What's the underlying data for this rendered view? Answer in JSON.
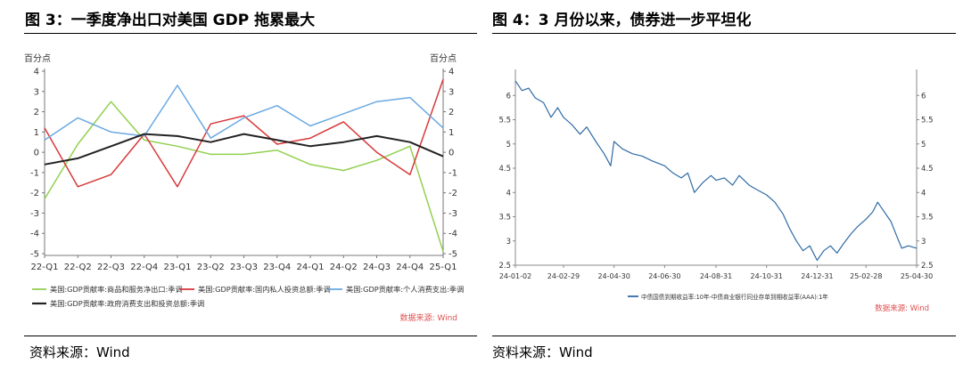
{
  "left": {
    "figure_title": "图 3：一季度净出口对美国 GDP 拖累最大",
    "source": "资料来源：Wind",
    "watermark": "数据来源: Wind",
    "unit_left": "百分点",
    "unit_right": "百分点"
  },
  "right": {
    "figure_title": "图 4：3 月份以来，债券进一步平坦化",
    "source": "资料来源：Wind",
    "watermark": "数据来源: Wind"
  },
  "colors": {
    "green": "#92d050",
    "red": "#d9393a",
    "blue": "#6aa9e3",
    "black": "#222222",
    "line_blue": "#2f6ba5",
    "watermark": "#e05050"
  },
  "chart_data": [
    {
      "type": "line",
      "categories": [
        "22-Q1",
        "22-Q2",
        "22-Q3",
        "22-Q4",
        "23-Q1",
        "23-Q2",
        "23-Q3",
        "23-Q4",
        "24-Q1",
        "24-Q2",
        "24-Q3",
        "24-Q4",
        "25-Q1"
      ],
      "ylim": [
        -5,
        4
      ],
      "yticks": [
        -5,
        -4,
        -3,
        -2,
        -1,
        0,
        1,
        2,
        3,
        4
      ],
      "grid": false,
      "legend_position": "bottom",
      "series": [
        {
          "name": "美国:GDP贡献率:商品和服务净出口:季调",
          "color": "green",
          "values": [
            -2.3,
            0.4,
            2.5,
            0.6,
            0.3,
            -0.1,
            -0.1,
            0.1,
            -0.6,
            -0.9,
            -0.4,
            0.3,
            -4.9
          ]
        },
        {
          "name": "美国:GDP贡献率:国内私人投资总额:季调",
          "color": "red",
          "values": [
            1.2,
            -1.7,
            -1.1,
            0.9,
            -1.7,
            1.4,
            1.8,
            0.4,
            0.7,
            1.5,
            0.0,
            -1.1,
            3.6
          ]
        },
        {
          "name": "美国:GDP贡献率:个人消费支出:季调",
          "color": "blue",
          "values": [
            0.6,
            1.7,
            1.0,
            0.8,
            3.3,
            0.7,
            1.7,
            2.3,
            1.3,
            1.9,
            2.5,
            2.7,
            1.2
          ]
        },
        {
          "name": "美国:GDP贡献率:政府消费支出和投资总额:季调",
          "color": "black",
          "values": [
            -0.6,
            -0.3,
            0.3,
            0.9,
            0.8,
            0.5,
            0.9,
            0.6,
            0.3,
            0.5,
            0.8,
            0.5,
            -0.2
          ]
        }
      ]
    },
    {
      "type": "line",
      "xlim": [
        "24-01-02",
        "25-04-30"
      ],
      "xticks": [
        "24-01-02",
        "24-02-29",
        "24-04-30",
        "24-06-30",
        "24-08-31",
        "24-10-31",
        "24-12-31",
        "25-02-28",
        "25-04-30"
      ],
      "ylim": [
        2.5,
        6.5
      ],
      "yticks": [
        2.5,
        3,
        3.5,
        4,
        4.5,
        5,
        5.5,
        6
      ],
      "grid": false,
      "legend_position": "bottom",
      "series": [
        {
          "name": "中债国债到期收益率:10年-中债商业银行同业存单到期收益率(AAA):1年",
          "color": "line_blue",
          "points": [
            [
              "24-01-02",
              6.3
            ],
            [
              "24-01-10",
              6.1
            ],
            [
              "24-01-18",
              6.15
            ],
            [
              "24-01-26",
              5.95
            ],
            [
              "24-02-05",
              5.85
            ],
            [
              "24-02-14",
              5.55
            ],
            [
              "24-02-22",
              5.75
            ],
            [
              "24-02-29",
              5.55
            ],
            [
              "24-03-10",
              5.4
            ],
            [
              "24-03-20",
              5.2
            ],
            [
              "24-03-28",
              5.35
            ],
            [
              "24-04-08",
              5.05
            ],
            [
              "24-04-18",
              4.8
            ],
            [
              "24-04-26",
              4.55
            ],
            [
              "24-04-30",
              5.05
            ],
            [
              "24-05-10",
              4.9
            ],
            [
              "24-05-22",
              4.8
            ],
            [
              "24-06-03",
              4.75
            ],
            [
              "24-06-15",
              4.65
            ],
            [
              "24-06-30",
              4.55
            ],
            [
              "24-07-10",
              4.4
            ],
            [
              "24-07-20",
              4.3
            ],
            [
              "24-07-28",
              4.4
            ],
            [
              "24-08-05",
              4.0
            ],
            [
              "24-08-15",
              4.2
            ],
            [
              "24-08-25",
              4.35
            ],
            [
              "24-08-31",
              4.25
            ],
            [
              "24-09-10",
              4.3
            ],
            [
              "24-09-20",
              4.15
            ],
            [
              "24-09-28",
              4.35
            ],
            [
              "24-10-10",
              4.15
            ],
            [
              "24-10-20",
              4.05
            ],
            [
              "24-10-31",
              3.95
            ],
            [
              "24-11-10",
              3.8
            ],
            [
              "24-11-20",
              3.55
            ],
            [
              "24-11-28",
              3.25
            ],
            [
              "24-12-06",
              3.0
            ],
            [
              "24-12-14",
              2.8
            ],
            [
              "24-12-22",
              2.9
            ],
            [
              "24-12-31",
              2.6
            ],
            [
              "25-01-08",
              2.8
            ],
            [
              "25-01-16",
              2.9
            ],
            [
              "25-01-24",
              2.75
            ],
            [
              "25-02-01",
              2.95
            ],
            [
              "25-02-10",
              3.15
            ],
            [
              "25-02-18",
              3.3
            ],
            [
              "25-02-28",
              3.45
            ],
            [
              "25-03-08",
              3.6
            ],
            [
              "25-03-14",
              3.8
            ],
            [
              "25-03-22",
              3.6
            ],
            [
              "25-03-30",
              3.4
            ],
            [
              "25-04-06",
              3.1
            ],
            [
              "25-04-12",
              2.85
            ],
            [
              "25-04-20",
              2.9
            ],
            [
              "25-04-30",
              2.85
            ]
          ]
        }
      ]
    }
  ]
}
